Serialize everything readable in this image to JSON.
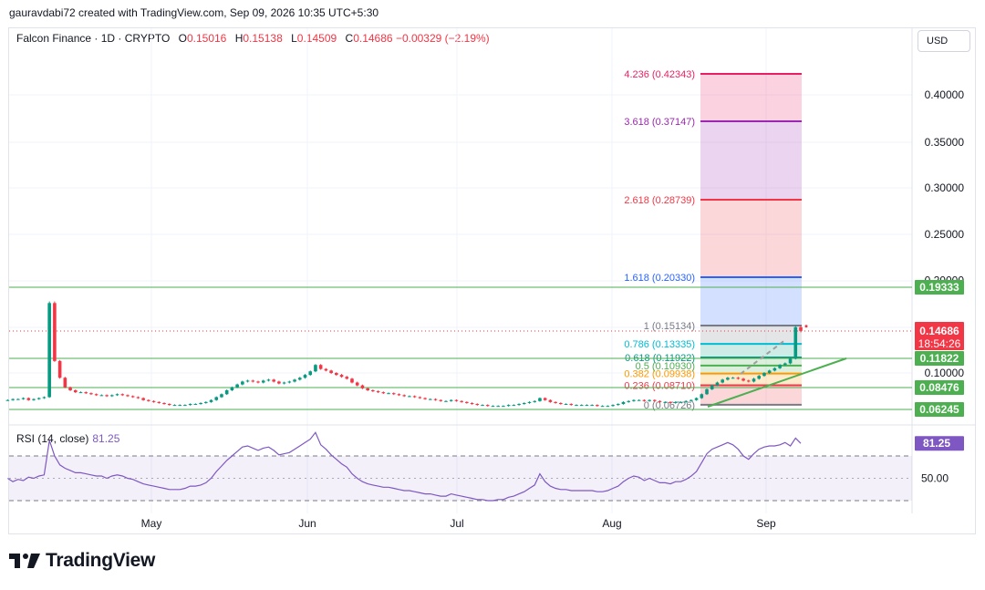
{
  "caption": "gauravdabi72 created with TradingView.com, Sep 09, 2026 10:35 UTC+5:30",
  "legend": {
    "symbol": "Falcon Finance · 1D · CRYPTO",
    "o_label": "O",
    "o_value": "0.15016",
    "h_label": "H",
    "h_value": "0.15138",
    "l_label": "L",
    "l_value": "0.14509",
    "c_label": "C",
    "c_value": "0.14686",
    "change": "−0.00329 (−2.19%)"
  },
  "currency": "USD",
  "rsi": {
    "label": "RSI (14, close)",
    "value": "81.25",
    "axis_label": "50.00",
    "badge": "81.25"
  },
  "brand": "TradingView",
  "colors": {
    "up": "#089981",
    "down": "#f23645",
    "rsi": "#7e57c2",
    "hline": "#4caf50"
  },
  "chart_data": {
    "type": "candlestick",
    "price_axis": {
      "ticks": [
        "0.40000",
        "0.35000",
        "0.30000",
        "0.25000",
        "0.20000",
        "0.10000"
      ]
    },
    "time_axis": [
      "May",
      "Jun",
      "Jul",
      "Aug",
      "Sep"
    ],
    "last_price": "0.14686",
    "countdown": "18:54:26",
    "horizontal_levels": [
      {
        "value": 0.19333,
        "label": "0.19333"
      },
      {
        "value": 0.11822,
        "label": "0.11822"
      },
      {
        "value": 0.08476,
        "label": "0.08476"
      },
      {
        "value": 0.06245,
        "label": "0.06245"
      }
    ],
    "fib_levels": [
      {
        "ratio": "0",
        "value": 0.06726,
        "label": "0 (0.06726)",
        "color": "#787b86"
      },
      {
        "ratio": "0.236",
        "value": 0.0871,
        "label": "0.236 (0.08710)",
        "color": "#f23645"
      },
      {
        "ratio": "0.382",
        "value": 0.09938,
        "label": "0.382 (0.09938)",
        "color": "#ff9800"
      },
      {
        "ratio": "0.5",
        "value": 0.1093,
        "label": "0.5 (0.10930)",
        "color": "#4caf50"
      },
      {
        "ratio": "0.618",
        "value": 0.11922,
        "label": "0.618 (0.11922)",
        "color": "#089981"
      },
      {
        "ratio": "0.786",
        "value": 0.13335,
        "label": "0.786 (0.13335)",
        "color": "#00bcd4"
      },
      {
        "ratio": "1",
        "value": 0.15134,
        "label": "1 (0.15134)",
        "color": "#787b86"
      },
      {
        "ratio": "1.618",
        "value": 0.2033,
        "label": "1.618 (0.20330)",
        "color": "#2962ff"
      },
      {
        "ratio": "2.618",
        "value": 0.28739,
        "label": "2.618 (0.28739)",
        "color": "#f23645"
      },
      {
        "ratio": "3.618",
        "value": 0.37147,
        "label": "3.618 (0.37147)",
        "color": "#9c27b0"
      },
      {
        "ratio": "4.236",
        "value": 0.42343,
        "label": "4.236 (0.42343)",
        "color": "#e91e63"
      }
    ],
    "fib_bands": [
      {
        "from": 0.06726,
        "to": 0.0871,
        "color": "#f23645"
      },
      {
        "from": 0.0871,
        "to": 0.09938,
        "color": "#ff9800"
      },
      {
        "from": 0.09938,
        "to": 0.1093,
        "color": "#4caf50"
      },
      {
        "from": 0.1093,
        "to": 0.11922,
        "color": "#4caf50"
      },
      {
        "from": 0.11922,
        "to": 0.13335,
        "color": "#089981"
      },
      {
        "from": 0.13335,
        "to": 0.15134,
        "color": "#787b86"
      },
      {
        "from": 0.15134,
        "to": 0.2033,
        "color": "#2962ff"
      },
      {
        "from": 0.2033,
        "to": 0.28739,
        "color": "#f23645"
      },
      {
        "from": 0.28739,
        "to": 0.37147,
        "color": "#9c27b0"
      },
      {
        "from": 0.37147,
        "to": 0.42343,
        "color": "#e91e63"
      }
    ],
    "candles_close": [
      0.072,
      0.073,
      0.073,
      0.074,
      0.072,
      0.073,
      0.074,
      0.075,
      0.176,
      0.115,
      0.095,
      0.085,
      0.082,
      0.08,
      0.08,
      0.079,
      0.078,
      0.077,
      0.077,
      0.076,
      0.077,
      0.078,
      0.077,
      0.076,
      0.075,
      0.074,
      0.072,
      0.071,
      0.07,
      0.069,
      0.068,
      0.067,
      0.067,
      0.067,
      0.067,
      0.068,
      0.068,
      0.069,
      0.07,
      0.072,
      0.075,
      0.078,
      0.082,
      0.085,
      0.088,
      0.091,
      0.092,
      0.091,
      0.09,
      0.092,
      0.093,
      0.091,
      0.089,
      0.09,
      0.091,
      0.093,
      0.095,
      0.098,
      0.102,
      0.11,
      0.105,
      0.103,
      0.1,
      0.098,
      0.096,
      0.094,
      0.09,
      0.087,
      0.084,
      0.082,
      0.081,
      0.08,
      0.079,
      0.079,
      0.078,
      0.077,
      0.076,
      0.076,
      0.075,
      0.074,
      0.073,
      0.073,
      0.072,
      0.071,
      0.071,
      0.072,
      0.071,
      0.07,
      0.069,
      0.068,
      0.067,
      0.067,
      0.066,
      0.066,
      0.066,
      0.066,
      0.067,
      0.067,
      0.068,
      0.069,
      0.07,
      0.071,
      0.074,
      0.072,
      0.07,
      0.069,
      0.068,
      0.068,
      0.067,
      0.067,
      0.067,
      0.067,
      0.067,
      0.066,
      0.066,
      0.066,
      0.067,
      0.068,
      0.07,
      0.071,
      0.072,
      0.072,
      0.071,
      0.072,
      0.071,
      0.07,
      0.07,
      0.069,
      0.07,
      0.07,
      0.071,
      0.072,
      0.074,
      0.078,
      0.083,
      0.087,
      0.09,
      0.093,
      0.095,
      0.095,
      0.094,
      0.092,
      0.091,
      0.094,
      0.097,
      0.1,
      0.103,
      0.106,
      0.11,
      0.112,
      0.118,
      0.15,
      0.147
    ],
    "rsi_values": [
      50,
      47,
      49,
      48,
      51,
      50,
      52,
      53,
      84,
      70,
      62,
      59,
      57,
      55,
      55,
      54,
      53,
      52,
      52,
      50,
      52,
      53,
      52,
      50,
      49,
      47,
      45,
      44,
      43,
      42,
      41,
      40,
      40,
      40,
      41,
      43,
      43,
      44,
      46,
      50,
      56,
      61,
      66,
      70,
      74,
      78,
      79,
      77,
      75,
      77,
      78,
      75,
      71,
      72,
      73,
      76,
      79,
      82,
      85,
      91,
      80,
      76,
      71,
      67,
      63,
      60,
      54,
      50,
      47,
      45,
      44,
      43,
      42,
      42,
      41,
      40,
      39,
      39,
      38,
      37,
      36,
      36,
      35,
      34,
      34,
      36,
      35,
      34,
      33,
      32,
      31,
      31,
      30,
      30,
      31,
      31,
      33,
      34,
      36,
      38,
      41,
      44,
      54,
      47,
      43,
      41,
      40,
      40,
      39,
      39,
      39,
      39,
      39,
      38,
      38,
      39,
      41,
      43,
      47,
      50,
      52,
      51,
      48,
      50,
      48,
      46,
      46,
      45,
      47,
      47,
      49,
      52,
      56,
      64,
      72,
      76,
      78,
      80,
      82,
      80,
      76,
      70,
      67,
      72,
      76,
      78,
      79,
      79,
      80,
      82,
      79,
      86,
      81.25
    ],
    "rsi_bands": {
      "upper": 70,
      "middle": 50,
      "lower": 30
    }
  }
}
